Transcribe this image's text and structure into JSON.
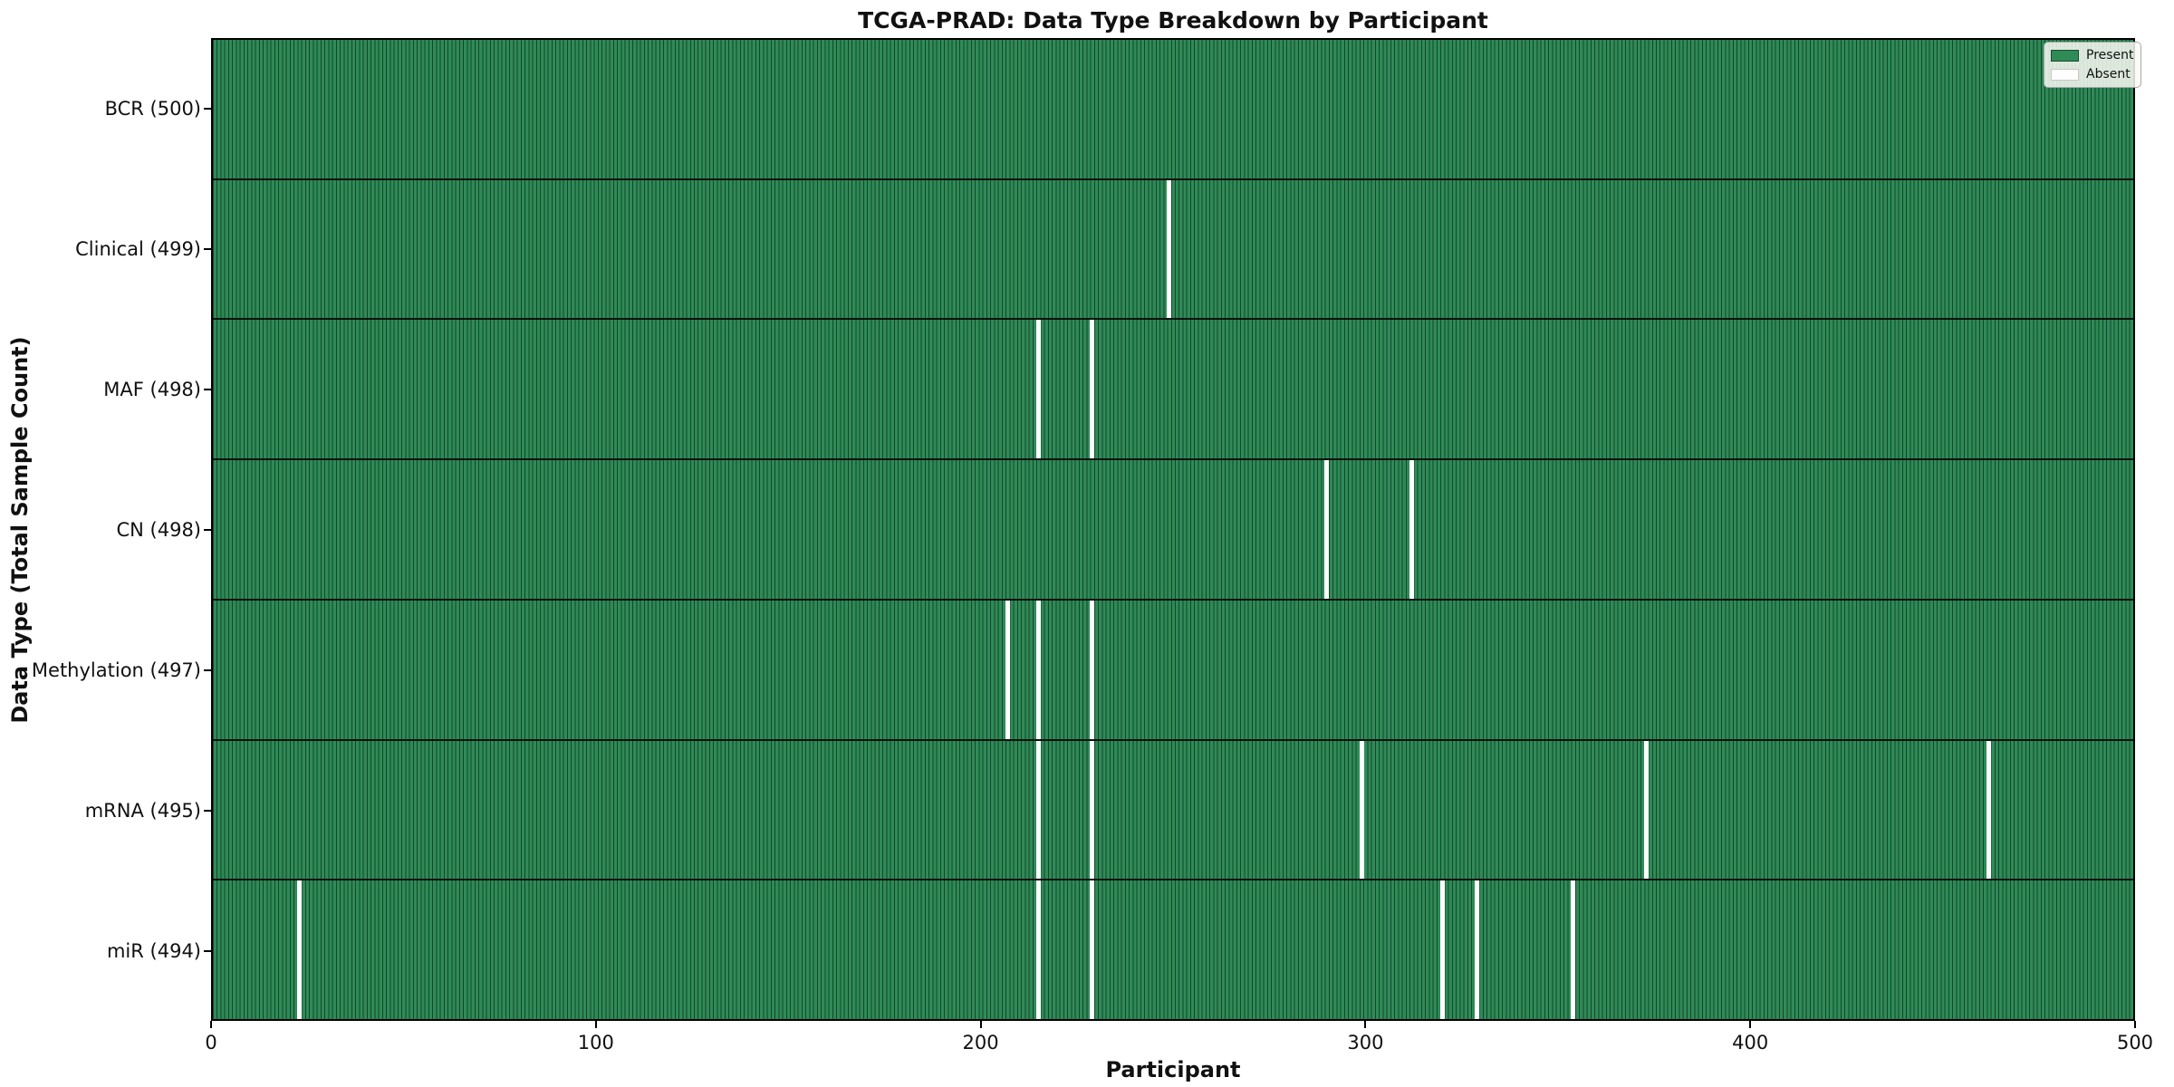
{
  "chart_data": {
    "type": "heatmap",
    "title": "TCGA-PRAD: Data Type Breakdown by Participant",
    "xlabel": "Participant",
    "ylabel": "Data Type (Total Sample Count)",
    "x_range": [
      0,
      500
    ],
    "x_ticks": [
      0,
      100,
      200,
      300,
      400,
      500
    ],
    "n_participants": 500,
    "grid": false,
    "legend": {
      "position": "upper right",
      "entries": [
        {
          "label": "Present",
          "color": "#2e8b57"
        },
        {
          "label": "Absent",
          "color": "#ffffff"
        }
      ]
    },
    "colors": {
      "present": "#2e8b57",
      "present_edge": "#17452b",
      "absent": "#ffffff",
      "row_divider": "#000000"
    },
    "rows": [
      {
        "label": "BCR (500)",
        "data_type": "BCR",
        "total": 500,
        "absent_participants": []
      },
      {
        "label": "Clinical (499)",
        "data_type": "Clinical",
        "total": 499,
        "absent_participants": [
          248
        ]
      },
      {
        "label": "MAF (498)",
        "data_type": "MAF",
        "total": 498,
        "absent_participants": [
          214,
          228
        ]
      },
      {
        "label": "CN (498)",
        "data_type": "CN",
        "total": 498,
        "absent_participants": [
          289,
          311
        ]
      },
      {
        "label": "Methylation (497)",
        "data_type": "Methylation",
        "total": 497,
        "absent_participants": [
          206,
          214,
          228
        ]
      },
      {
        "label": "mRNA (495)",
        "data_type": "mRNA",
        "total": 495,
        "absent_participants": [
          214,
          228,
          298,
          372,
          461
        ]
      },
      {
        "label": "miR (494)",
        "data_type": "miR",
        "total": 494,
        "absent_participants": [
          22,
          214,
          228,
          319,
          328,
          353
        ]
      }
    ]
  }
}
